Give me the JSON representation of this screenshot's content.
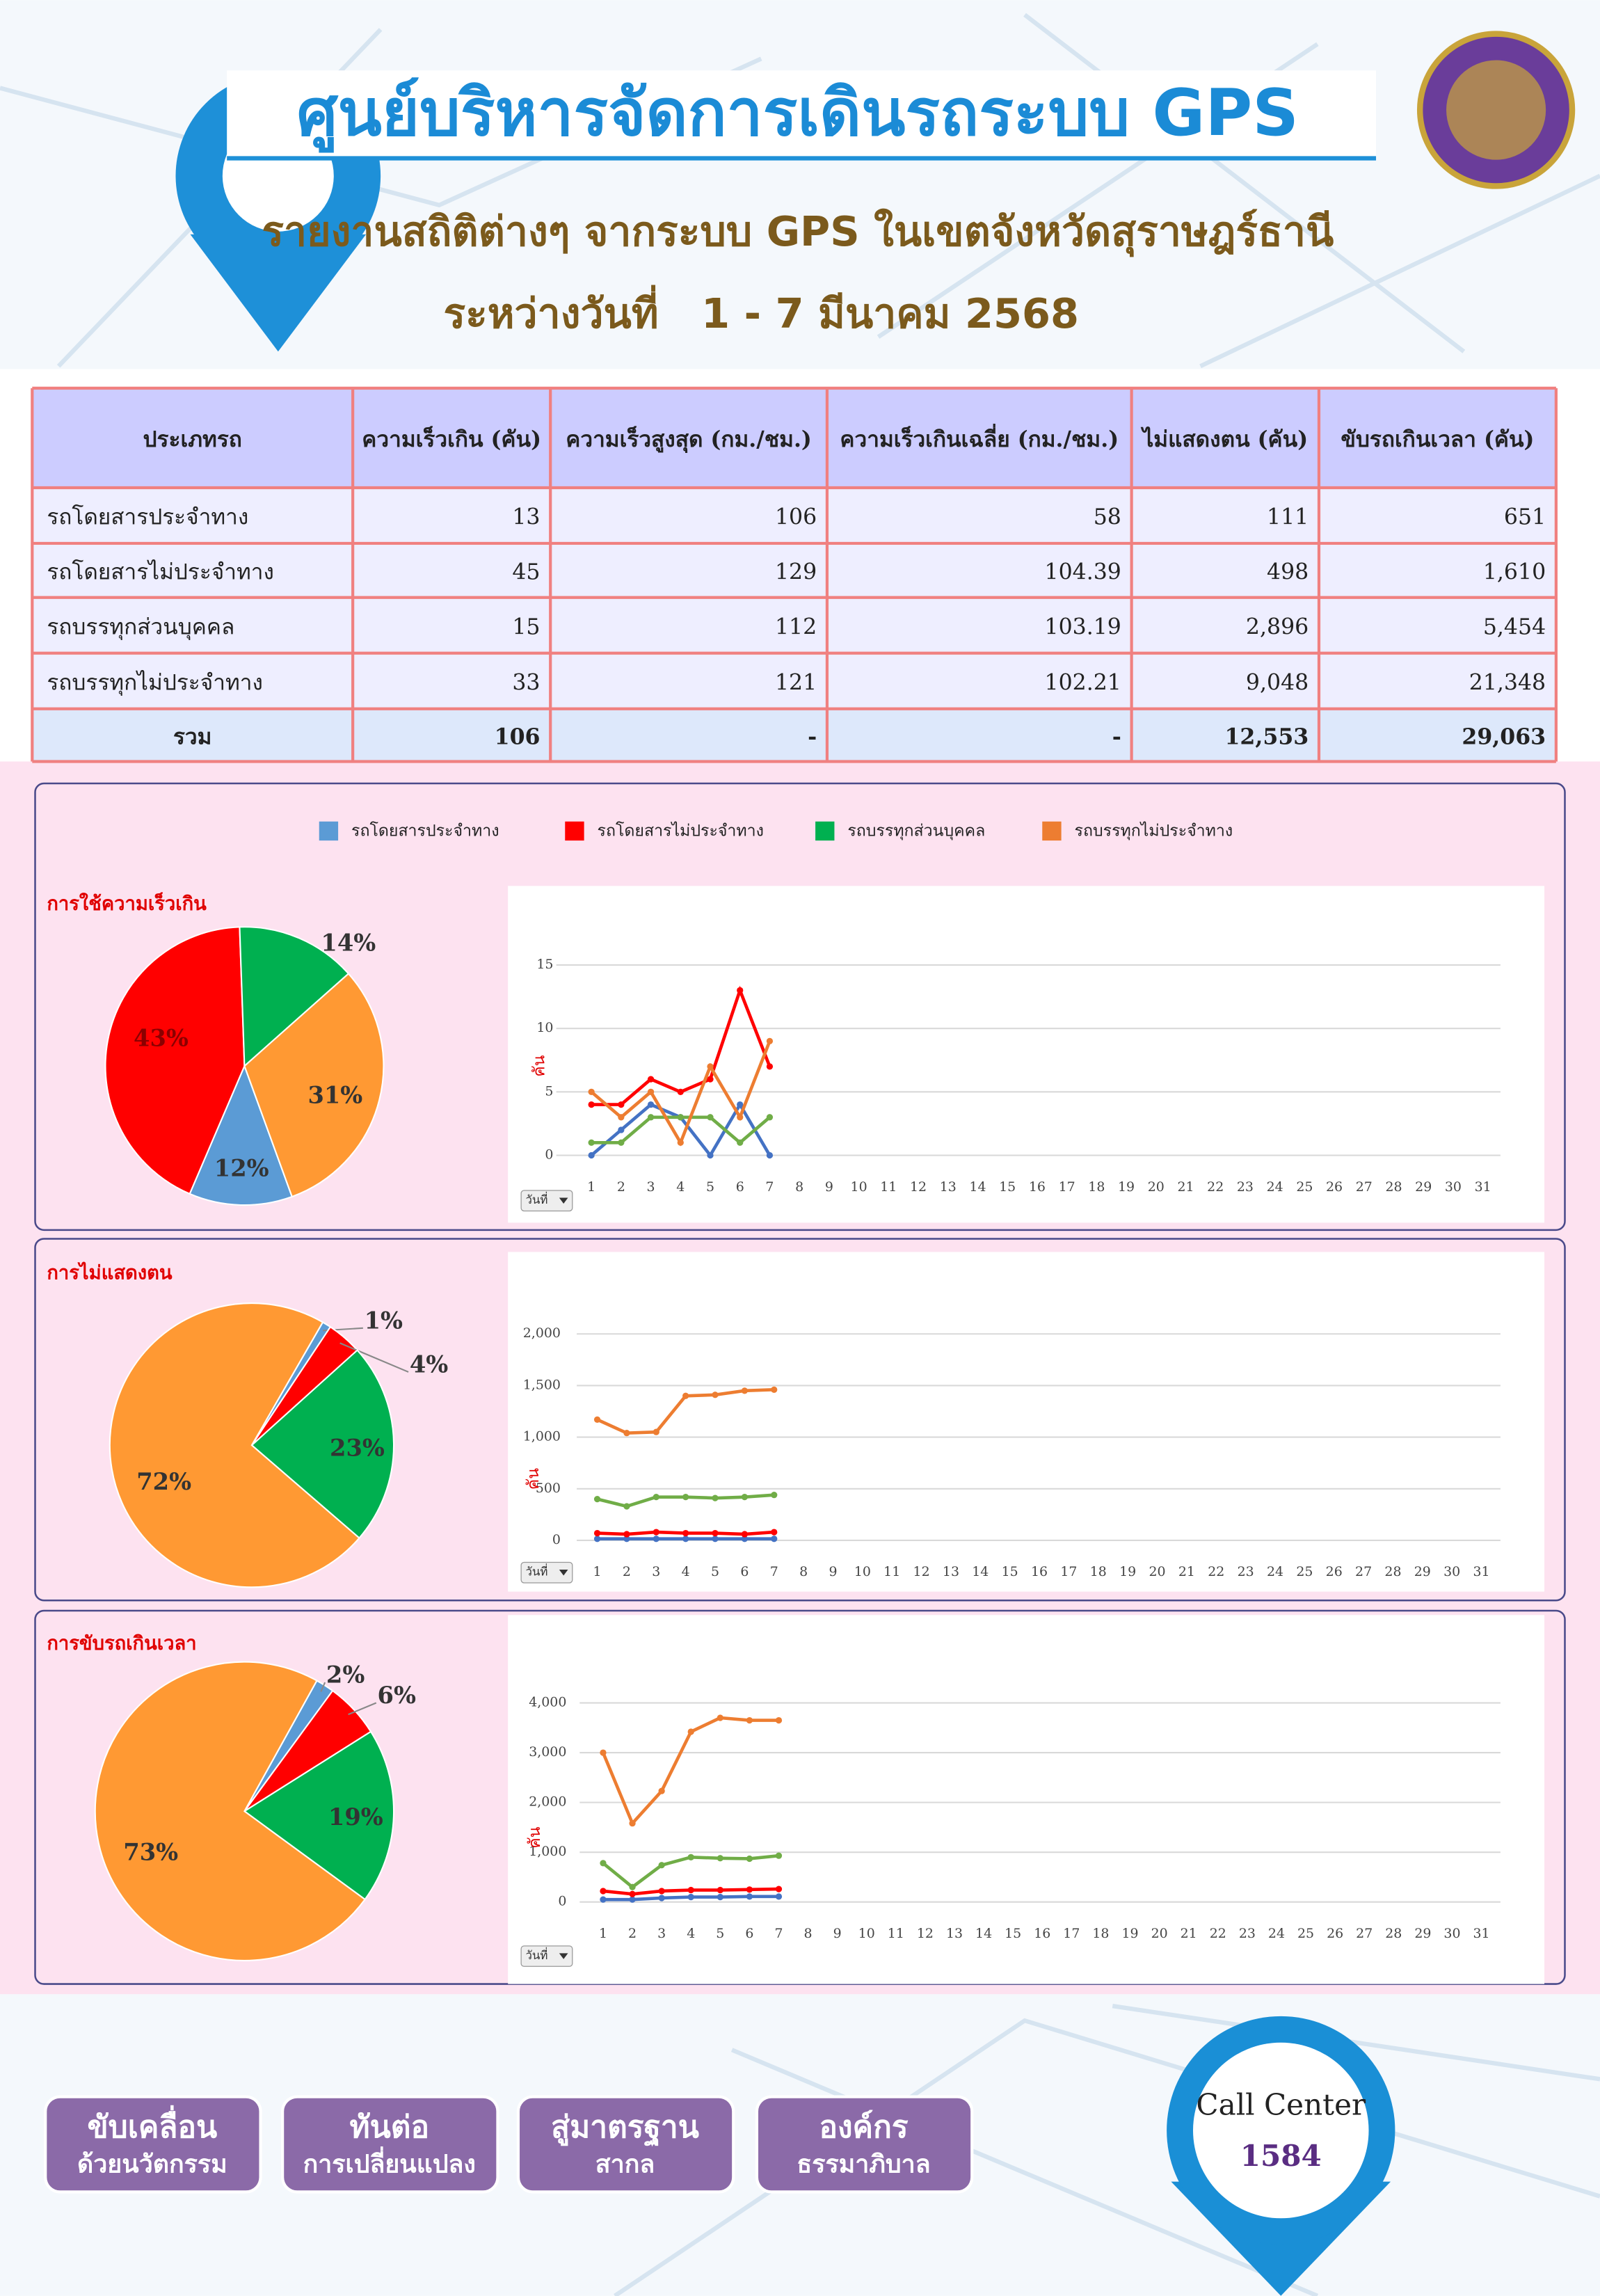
{
  "header": {
    "title": "ศูนย์บริหารจัดการเดินรถระบบ GPS",
    "subtitle": "รายงานสถิติต่างๆ จากระบบ GPS ในเขตจังหวัดสุราษฎร์ธานี",
    "date": "ระหว่างวันที่   1 - 7 มีนาคม 2568"
  },
  "table": {
    "columns": [
      "ประเภทรถ",
      "ความเร็วเกิน (คัน)",
      "ความเร็วสูงสุด (กม./ชม.)",
      "ความเร็วเกินเฉลี่ย (กม./ชม.)",
      "ไม่แสดงตน (คัน)",
      "ขับรถเกินเวลา (คัน)"
    ],
    "rows": [
      [
        "รถโดยสารประจำทาง",
        "13",
        "106",
        "58",
        "111",
        "651"
      ],
      [
        "รถโดยสารไม่ประจำทาง",
        "45",
        "129",
        "104.39",
        "498",
        "1,610"
      ],
      [
        "รถบรรทุกส่วนบุคคล",
        "15",
        "112",
        "103.19",
        "2,896",
        "5,454"
      ],
      [
        "รถบรรทุกไม่ประจำทาง",
        "33",
        "121",
        "102.21",
        "9,048",
        "21,348"
      ]
    ],
    "total": [
      "รวม",
      "106",
      "-",
      "-",
      "12,553",
      "29,063"
    ]
  },
  "legend": [
    {
      "name": "รถโดยสารประจำทาง",
      "color": "#5b9bd5"
    },
    {
      "name": "รถโดยสารไม่ประจำทาง",
      "color": "#ff0000"
    },
    {
      "name": "รถบรรทุกส่วนบุคคล",
      "color": "#00b050"
    },
    {
      "name": "รถบรรทุกไม่ประจำทาง",
      "color": "#ed7d31"
    }
  ],
  "chart_data": [
    {
      "type": "pie",
      "title": "การใช้ความเร็วเกิน",
      "values": [
        12,
        43,
        14,
        31
      ],
      "value_labels": [
        "12%",
        "43%",
        "14%",
        "31%"
      ],
      "colors": [
        "#5b9bd5",
        "#ff0000",
        "#00b050",
        "#ff9933"
      ]
    },
    {
      "type": "line",
      "ylabel": "คัน",
      "filter": "วันที่",
      "x": [
        1,
        2,
        3,
        4,
        5,
        6,
        7
      ],
      "xlim": [
        1,
        31
      ],
      "xticks": [
        1,
        2,
        3,
        4,
        5,
        6,
        7,
        8,
        9,
        10,
        11,
        12,
        13,
        14,
        15,
        16,
        17,
        18,
        19,
        20,
        21,
        22,
        23,
        24,
        25,
        26,
        27,
        28,
        29,
        30,
        31
      ],
      "ylim": [
        0,
        15
      ],
      "yticks": [
        0,
        5,
        10,
        15
      ],
      "grid": true,
      "series": [
        {
          "color": "#4472c4",
          "values": [
            0,
            2,
            4,
            3,
            0,
            4,
            0
          ]
        },
        {
          "color": "#ff0000",
          "values": [
            4,
            4,
            6,
            5,
            6,
            13,
            7
          ]
        },
        {
          "color": "#70ad47",
          "values": [
            1,
            1,
            3,
            3,
            3,
            1,
            3
          ]
        },
        {
          "color": "#ed7d31",
          "values": [
            5,
            3,
            5,
            1,
            7,
            3,
            9
          ]
        }
      ]
    },
    {
      "type": "pie",
      "title": "การไม่แสดงตน",
      "values": [
        1,
        4,
        23,
        72
      ],
      "value_labels": [
        "1%",
        "4%",
        "23%",
        "72%"
      ],
      "colors": [
        "#5b9bd5",
        "#ff0000",
        "#00b050",
        "#ff9933"
      ]
    },
    {
      "type": "line",
      "ylabel": "คัน",
      "filter": "วันที่",
      "x": [
        1,
        2,
        3,
        4,
        5,
        6,
        7
      ],
      "xlim": [
        1,
        31
      ],
      "xticks": [
        1,
        2,
        3,
        4,
        5,
        6,
        7,
        8,
        9,
        10,
        11,
        12,
        13,
        14,
        15,
        16,
        17,
        18,
        19,
        20,
        21,
        22,
        23,
        24,
        25,
        26,
        27,
        28,
        29,
        30,
        31
      ],
      "ylim": [
        0,
        2000
      ],
      "yticks": [
        0,
        500,
        {
          "value": 1000,
          "label": "1,000"
        },
        {
          "value": 1500,
          "label": "1,500"
        },
        {
          "value": 2000,
          "label": "2,000"
        }
      ],
      "grid": true,
      "series": [
        {
          "color": "#4472c4",
          "values": [
            15,
            15,
            15,
            15,
            15,
            15,
            15
          ]
        },
        {
          "color": "#ff0000",
          "values": [
            70,
            60,
            80,
            70,
            70,
            60,
            80
          ]
        },
        {
          "color": "#70ad47",
          "values": [
            400,
            330,
            420,
            420,
            410,
            420,
            440
          ]
        },
        {
          "color": "#ed7d31",
          "values": [
            1170,
            1040,
            1050,
            1400,
            1410,
            1450,
            1460
          ]
        }
      ]
    },
    {
      "type": "pie",
      "title": "การขับรถเกินเวลา",
      "values": [
        2,
        6,
        19,
        73
      ],
      "value_labels": [
        "2%",
        "6%",
        "19%",
        "73%"
      ],
      "colors": [
        "#5b9bd5",
        "#ff0000",
        "#00b050",
        "#ff9933"
      ]
    },
    {
      "type": "line",
      "ylabel": "คัน",
      "filter": "วันที่",
      "x": [
        1,
        2,
        3,
        4,
        5,
        6,
        7
      ],
      "xlim": [
        1,
        31
      ],
      "xticks": [
        1,
        2,
        3,
        4,
        5,
        6,
        7,
        8,
        9,
        10,
        11,
        12,
        13,
        14,
        15,
        16,
        17,
        18,
        19,
        20,
        21,
        22,
        23,
        24,
        25,
        26,
        27,
        28,
        29,
        30,
        31
      ],
      "ylim": [
        0,
        4000
      ],
      "yticks": [
        0,
        {
          "value": 1000,
          "label": "1,000"
        },
        {
          "value": 2000,
          "label": "2,000"
        },
        {
          "value": 3000,
          "label": "3,000"
        },
        {
          "value": 4000,
          "label": "4,000"
        }
      ],
      "grid": true,
      "series": [
        {
          "color": "#4472c4",
          "values": [
            50,
            50,
            80,
            100,
            100,
            110,
            110
          ]
        },
        {
          "color": "#ff0000",
          "values": [
            220,
            160,
            220,
            240,
            240,
            250,
            260
          ]
        },
        {
          "color": "#70ad47",
          "values": [
            780,
            300,
            740,
            900,
            880,
            870,
            930
          ]
        },
        {
          "color": "#ed7d31",
          "values": [
            3000,
            1580,
            2230,
            3420,
            3700,
            3650,
            3650
          ]
        }
      ]
    }
  ],
  "footer": {
    "buttons": [
      [
        "ขับเคลื่อน",
        "ด้วยนวัตกรรม"
      ],
      [
        "ทันต่อ",
        "การเปลี่ยนแปลง"
      ],
      [
        "สู่มาตรฐาน",
        "สากล"
      ],
      [
        "องค์กร",
        "ธรรมาภิบาล"
      ]
    ],
    "call_center": {
      "label": "Call Center",
      "number": "1584"
    }
  }
}
